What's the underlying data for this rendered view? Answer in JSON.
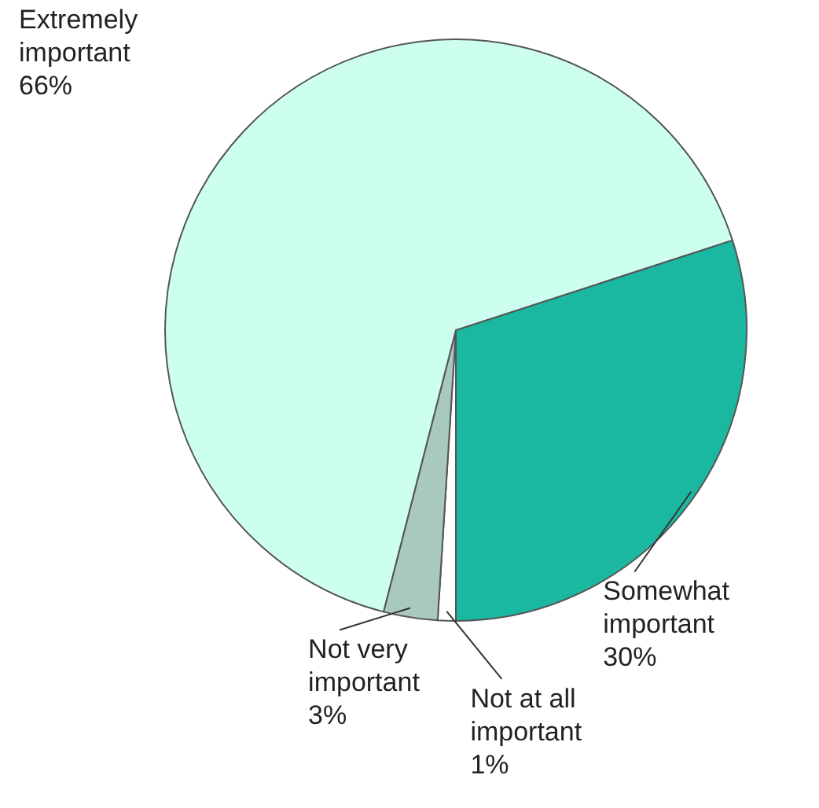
{
  "chart_data": {
    "type": "pie",
    "categories": [
      "Somewhat important",
      "Not at all important",
      "Not very important",
      "Extremely important"
    ],
    "values": [
      30,
      1,
      3,
      66
    ],
    "value_labels": [
      "30%",
      "1%",
      "3%",
      "66%"
    ],
    "colors": [
      "#1ab8a0",
      "#ffffff",
      "#a8c8c0",
      "#ccfff0"
    ]
  }
}
